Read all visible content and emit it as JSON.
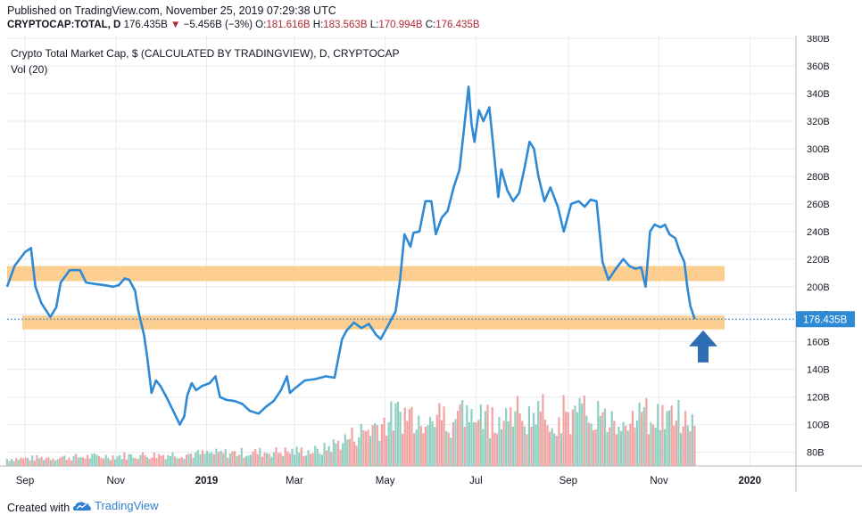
{
  "header": {
    "published": "Published on TradingView.com, November 25, 2019 07:29:38 UTC",
    "symbol": "CRYPTOCAP:TOTAL, D",
    "last": "176.435B",
    "arrow": "▼",
    "change": "−5.456B (−3%)",
    "o_label": "O:",
    "o": "181.616B",
    "h_label": "H:",
    "h": "183.563B",
    "l_label": "L:",
    "l": "170.994B",
    "c_label": "C:",
    "c": "176.435B"
  },
  "chart_title": "Crypto Total Market Cap, $ (CALCULATED BY TRADINGVIEW), D, CRYPTOCAP",
  "volume_label": "Vol (20)",
  "footer": {
    "created_with": "Created with",
    "brand": "TradingView"
  },
  "colors": {
    "line": "#2f8ad6",
    "zone": "#fcc77e",
    "vol_up": "#8fd0c2",
    "vol_down": "#f2a3a3",
    "grid": "#e6ecf2",
    "price_tag": "#2f8ad6"
  },
  "chart_data": {
    "type": "line",
    "x_axis_labels": [
      "Sep",
      "Nov",
      "2019",
      "Mar",
      "May",
      "Jul",
      "Sep",
      "Nov",
      "2020"
    ],
    "y_axis_labels": [
      "80B",
      "100B",
      "120B",
      "140B",
      "160B",
      "180B",
      "200B",
      "220B",
      "240B",
      "260B",
      "280B",
      "300B",
      "320B",
      "340B",
      "360B",
      "380B"
    ],
    "ylim": [
      70,
      382
    ],
    "xlim": [
      "2018-08-20",
      "2020-02-01"
    ],
    "last_price_label": "176.435B",
    "last_price": 176.435,
    "support_zones": [
      [
        204,
        215
      ],
      [
        169,
        179
      ]
    ],
    "series": [
      {
        "values": [
          [
            "2018-08-20",
            200
          ],
          [
            "2018-08-25",
            215
          ],
          [
            "2018-09-01",
            225
          ],
          [
            "2018-09-05",
            228
          ],
          [
            "2018-09-08",
            200
          ],
          [
            "2018-09-12",
            188
          ],
          [
            "2018-09-18",
            178
          ],
          [
            "2018-09-22",
            185
          ],
          [
            "2018-09-25",
            203
          ],
          [
            "2018-10-01",
            212
          ],
          [
            "2018-10-08",
            212
          ],
          [
            "2018-10-12",
            203
          ],
          [
            "2018-10-18",
            202
          ],
          [
            "2018-10-25",
            201
          ],
          [
            "2018-10-30",
            200
          ],
          [
            "2018-11-03",
            201
          ],
          [
            "2018-11-07",
            206
          ],
          [
            "2018-11-10",
            205
          ],
          [
            "2018-11-14",
            197
          ],
          [
            "2018-11-16",
            183
          ],
          [
            "2018-11-20",
            165
          ],
          [
            "2018-11-22",
            150
          ],
          [
            "2018-11-25",
            123
          ],
          [
            "2018-11-28",
            132
          ],
          [
            "2018-12-01",
            128
          ],
          [
            "2018-12-05",
            120
          ],
          [
            "2018-12-10",
            109
          ],
          [
            "2018-12-14",
            100
          ],
          [
            "2018-12-17",
            106
          ],
          [
            "2018-12-19",
            121
          ],
          [
            "2018-12-22",
            130
          ],
          [
            "2018-12-25",
            125
          ],
          [
            "2018-12-29",
            128
          ],
          [
            "2019-01-03",
            130
          ],
          [
            "2019-01-07",
            135
          ],
          [
            "2019-01-10",
            120
          ],
          [
            "2019-01-14",
            118
          ],
          [
            "2019-01-20",
            117
          ],
          [
            "2019-01-25",
            115
          ],
          [
            "2019-01-30",
            110
          ],
          [
            "2019-02-05",
            108
          ],
          [
            "2019-02-10",
            113
          ],
          [
            "2019-02-15",
            117
          ],
          [
            "2019-02-20",
            125
          ],
          [
            "2019-02-24",
            135
          ],
          [
            "2019-02-26",
            123
          ],
          [
            "2019-03-01",
            126
          ],
          [
            "2019-03-08",
            132
          ],
          [
            "2019-03-15",
            133
          ],
          [
            "2019-03-22",
            135
          ],
          [
            "2019-03-28",
            134
          ],
          [
            "2019-04-02",
            162
          ],
          [
            "2019-04-05",
            168
          ],
          [
            "2019-04-10",
            174
          ],
          [
            "2019-04-15",
            170
          ],
          [
            "2019-04-20",
            173
          ],
          [
            "2019-04-25",
            165
          ],
          [
            "2019-04-28",
            162
          ],
          [
            "2019-05-03",
            172
          ],
          [
            "2019-05-08",
            182
          ],
          [
            "2019-05-11",
            205
          ],
          [
            "2019-05-14",
            238
          ],
          [
            "2019-05-18",
            229
          ],
          [
            "2019-05-20",
            239
          ],
          [
            "2019-05-24",
            240
          ],
          [
            "2019-05-28",
            262
          ],
          [
            "2019-06-01",
            262
          ],
          [
            "2019-06-04",
            238
          ],
          [
            "2019-06-08",
            250
          ],
          [
            "2019-06-12",
            255
          ],
          [
            "2019-06-16",
            272
          ],
          [
            "2019-06-20",
            285
          ],
          [
            "2019-06-23",
            315
          ],
          [
            "2019-06-26",
            345
          ],
          [
            "2019-06-28",
            318
          ],
          [
            "2019-06-30",
            305
          ],
          [
            "2019-07-03",
            328
          ],
          [
            "2019-07-06",
            320
          ],
          [
            "2019-07-10",
            330
          ],
          [
            "2019-07-13",
            298
          ],
          [
            "2019-07-16",
            265
          ],
          [
            "2019-07-18",
            285
          ],
          [
            "2019-07-22",
            270
          ],
          [
            "2019-07-26",
            262
          ],
          [
            "2019-07-30",
            268
          ],
          [
            "2019-08-03",
            288
          ],
          [
            "2019-08-06",
            305
          ],
          [
            "2019-08-09",
            300
          ],
          [
            "2019-08-12",
            280
          ],
          [
            "2019-08-16",
            262
          ],
          [
            "2019-08-20",
            272
          ],
          [
            "2019-08-25",
            258
          ],
          [
            "2019-08-29",
            240
          ],
          [
            "2019-09-03",
            260
          ],
          [
            "2019-09-08",
            262
          ],
          [
            "2019-09-12",
            258
          ],
          [
            "2019-09-16",
            263
          ],
          [
            "2019-09-20",
            262
          ],
          [
            "2019-09-24",
            218
          ],
          [
            "2019-09-28",
            205
          ],
          [
            "2019-10-03",
            213
          ],
          [
            "2019-10-08",
            220
          ],
          [
            "2019-10-12",
            215
          ],
          [
            "2019-10-16",
            213
          ],
          [
            "2019-10-20",
            214
          ],
          [
            "2019-10-23",
            200
          ],
          [
            "2019-10-26",
            240
          ],
          [
            "2019-10-29",
            245
          ],
          [
            "2019-11-02",
            243
          ],
          [
            "2019-11-05",
            245
          ],
          [
            "2019-11-08",
            238
          ],
          [
            "2019-11-12",
            235
          ],
          [
            "2019-11-15",
            225
          ],
          [
            "2019-11-18",
            218
          ],
          [
            "2019-11-20",
            200
          ],
          [
            "2019-11-22",
            186
          ],
          [
            "2019-11-25",
            176.435
          ]
        ]
      }
    ],
    "volume_bars": 300
  }
}
